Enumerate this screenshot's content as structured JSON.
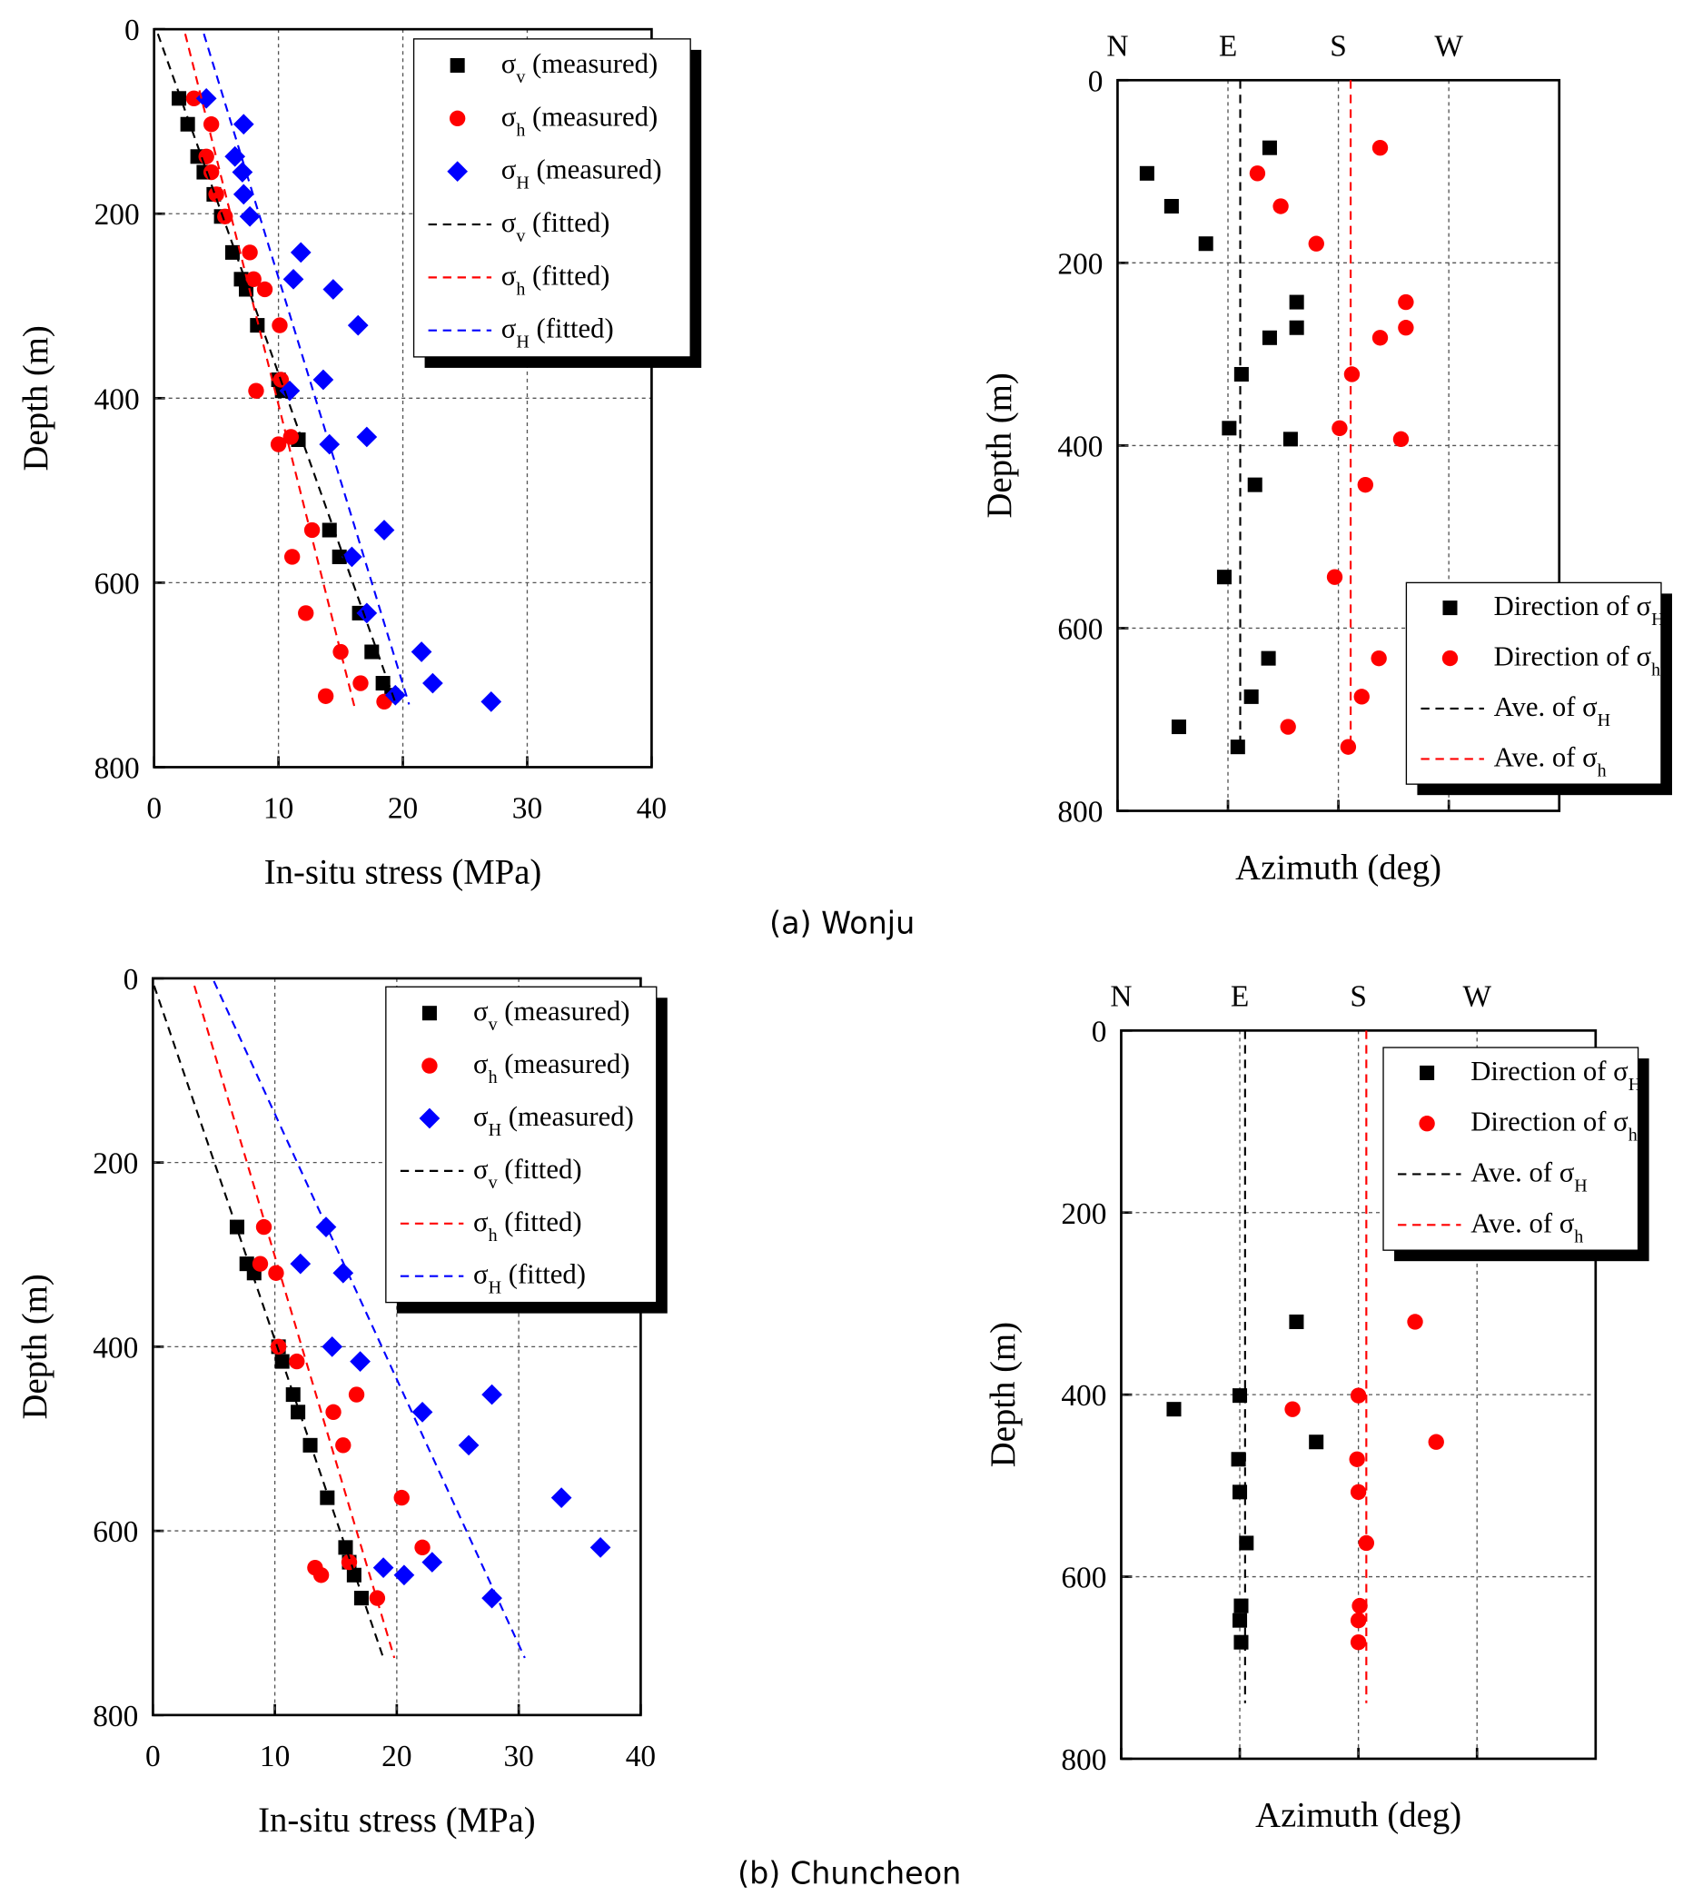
{
  "captions": [
    "(a) Wonju",
    "(b) Chuncheon"
  ],
  "chart_data": [
    {
      "type": "scatter",
      "xlabel": "In-situ stress (MPa)",
      "ylabel": "Depth (m)",
      "xlim": [
        0,
        40
      ],
      "ylim": [
        0,
        800
      ],
      "xticks": [
        0,
        10,
        20,
        30,
        40
      ],
      "yticks": [
        0,
        200,
        400,
        600,
        800
      ],
      "y_inverted": true,
      "grid": true,
      "legend": "upper right",
      "series": [
        {
          "name": "σv (measured)",
          "color": "#000000",
          "marker": "square",
          "x": [
            2.0,
            2.7,
            3.5,
            4.0,
            4.8,
            5.4,
            6.3,
            7.0,
            7.4,
            8.3,
            10.0,
            10.3,
            11.6,
            14.1,
            14.9,
            16.5,
            17.5,
            18.4,
            19.1
          ],
          "y": [
            75,
            103,
            138,
            155,
            179,
            203,
            242,
            271,
            282,
            321,
            380,
            392,
            445,
            543,
            572,
            633,
            675,
            709,
            722
          ]
        },
        {
          "name": "σh (measured)",
          "color": "#ff0000",
          "marker": "circle",
          "x": [
            3.2,
            4.6,
            4.2,
            4.6,
            5.0,
            5.7,
            7.7,
            8.0,
            8.9,
            10.1,
            10.2,
            8.2,
            11.0,
            10.0,
            12.7,
            11.1,
            12.2,
            15.0,
            16.6,
            13.8,
            18.5
          ],
          "y": [
            75,
            103,
            138,
            155,
            179,
            203,
            242,
            271,
            282,
            321,
            380,
            392,
            442,
            450,
            543,
            572,
            633,
            675,
            709,
            723,
            729
          ]
        },
        {
          "name": "σH (measured)",
          "color": "#0000ff",
          "marker": "diamond",
          "x": [
            4.2,
            7.2,
            6.5,
            7.1,
            7.2,
            7.7,
            11.8,
            11.2,
            14.4,
            16.4,
            13.6,
            10.9,
            17.1,
            14.1,
            18.5,
            15.9,
            17.1,
            21.5,
            22.4,
            19.4,
            27.1
          ],
          "y": [
            75,
            103,
            138,
            155,
            179,
            203,
            242,
            271,
            282,
            321,
            380,
            392,
            442,
            450,
            543,
            572,
            633,
            675,
            709,
            722,
            729
          ]
        },
        {
          "name": "σv (fitted)",
          "color": "#000000",
          "line": "dashed",
          "x": [
            0.3,
            19.4
          ],
          "y": [
            5,
            730
          ]
        },
        {
          "name": "σh (fitted)",
          "color": "#ff0000",
          "line": "dashed",
          "x": [
            2.5,
            16.1
          ],
          "y": [
            5,
            734
          ]
        },
        {
          "name": "σH (fitted)",
          "color": "#0000ff",
          "line": "dashed",
          "x": [
            4.0,
            20.5
          ],
          "y": [
            5,
            732
          ]
        }
      ]
    },
    {
      "type": "scatter",
      "xlabel": "Azimuth (deg)",
      "ylabel": "Depth (m)",
      "xlim": [
        0,
        360
      ],
      "ylim": [
        0,
        800
      ],
      "xticks": [
        {
          "value": 0,
          "label": "N"
        },
        {
          "value": 90,
          "label": "E"
        },
        {
          "value": 180,
          "label": "S"
        },
        {
          "value": 270,
          "label": "W"
        }
      ],
      "xtick_position": "top",
      "yticks": [
        0,
        200,
        400,
        600,
        800
      ],
      "y_inverted": true,
      "grid": true,
      "legend": "lower right",
      "series": [
        {
          "name": "Direction of σH",
          "color": "#000000",
          "marker": "square",
          "x": [
            124,
            24,
            44,
            72,
            146,
            146,
            124,
            101,
            91,
            141,
            112,
            87,
            123,
            109,
            50,
            98
          ],
          "y": [
            74,
            102,
            138,
            179,
            243,
            271,
            282,
            322,
            381,
            393,
            443,
            544,
            633,
            675,
            708,
            730
          ]
        },
        {
          "name": "Direction of σh",
          "color": "#ff0000",
          "marker": "circle",
          "x": [
            214,
            114,
            133,
            162,
            235,
            235,
            214,
            191,
            181,
            231,
            202,
            177,
            213,
            199,
            139,
            188
          ],
          "y": [
            74,
            102,
            138,
            179,
            243,
            271,
            282,
            322,
            381,
            393,
            443,
            544,
            633,
            675,
            708,
            730
          ]
        },
        {
          "name": "Ave. of σH",
          "color": "#000000",
          "line": "dashed",
          "x": [
            100,
            100
          ],
          "y": [
            0,
            726
          ]
        },
        {
          "name": "Ave. of σh",
          "color": "#ff0000",
          "line": "dashed",
          "x": [
            190,
            190
          ],
          "y": [
            0,
            726
          ]
        }
      ]
    },
    {
      "type": "scatter",
      "xlabel": "In-situ stress (MPa)",
      "ylabel": "Depth (m)",
      "xlim": [
        0,
        40
      ],
      "ylim": [
        0,
        800
      ],
      "xticks": [
        0,
        10,
        20,
        30,
        40
      ],
      "yticks": [
        0,
        200,
        400,
        600,
        800
      ],
      "y_inverted": true,
      "grid": true,
      "legend": "upper right",
      "series": [
        {
          "name": "σv (measured)",
          "color": "#000000",
          "marker": "square",
          "x": [
            6.9,
            7.7,
            8.3,
            10.3,
            10.6,
            11.5,
            11.9,
            12.9,
            14.3,
            15.8,
            16.1,
            16.5,
            17.1
          ],
          "y": [
            270,
            310,
            320,
            400,
            416,
            452,
            471,
            507,
            564,
            618,
            634,
            648,
            673
          ]
        },
        {
          "name": "σh (measured)",
          "color": "#ff0000",
          "marker": "circle",
          "x": [
            9.1,
            8.8,
            10.1,
            10.3,
            11.8,
            16.7,
            14.8,
            15.6,
            20.4,
            22.1,
            16.1,
            13.3,
            13.8,
            18.4
          ],
          "y": [
            270,
            310,
            320,
            400,
            416,
            452,
            471,
            507,
            564,
            618,
            634,
            640,
            648,
            673
          ]
        },
        {
          "name": "σH (measured)",
          "color": "#0000ff",
          "marker": "diamond",
          "x": [
            14.2,
            12.1,
            15.6,
            14.7,
            17.0,
            27.8,
            22.1,
            25.9,
            33.5,
            36.7,
            22.9,
            18.9,
            20.6,
            27.8
          ],
          "y": [
            270,
            310,
            320,
            400,
            416,
            452,
            471,
            507,
            564,
            618,
            634,
            640,
            648,
            673
          ]
        },
        {
          "name": "σv (fitted)",
          "color": "#000000",
          "line": "dashed",
          "x": [
            0.1,
            18.9
          ],
          "y": [
            8,
            738
          ]
        },
        {
          "name": "σh (fitted)",
          "color": "#ff0000",
          "line": "dashed",
          "x": [
            3.4,
            19.8
          ],
          "y": [
            8,
            738
          ]
        },
        {
          "name": "σH (fitted)",
          "color": "#0000ff",
          "line": "dashed",
          "x": [
            5.0,
            30.5
          ],
          "y": [
            3,
            738
          ]
        }
      ]
    },
    {
      "type": "scatter",
      "xlabel": "Azimuth (deg)",
      "ylabel": "Depth (m)",
      "xlim": [
        0,
        360
      ],
      "ylim": [
        0,
        800
      ],
      "xticks": [
        {
          "value": 0,
          "label": "N"
        },
        {
          "value": 90,
          "label": "E"
        },
        {
          "value": 180,
          "label": "S"
        },
        {
          "value": 270,
          "label": "W"
        }
      ],
      "xtick_position": "top",
      "yticks": [
        0,
        200,
        400,
        600,
        800
      ],
      "y_inverted": true,
      "grid": true,
      "legend": "upper right",
      "series": [
        {
          "name": "Direction of σH",
          "color": "#000000",
          "marker": "square",
          "x": [
            133,
            90,
            40,
            148,
            89,
            90,
            95,
            91,
            90,
            91
          ],
          "y": [
            320,
            401,
            416,
            452,
            471,
            507,
            563,
            632,
            648,
            672
          ]
        },
        {
          "name": "Direction of σh",
          "color": "#ff0000",
          "marker": "circle",
          "x": [
            223,
            180,
            130,
            239,
            179,
            180,
            186,
            181,
            180,
            180
          ],
          "y": [
            320,
            401,
            416,
            452,
            471,
            507,
            563,
            632,
            648,
            672
          ]
        },
        {
          "name": "Ave. of σH",
          "color": "#000000",
          "line": "dashed",
          "x": [
            94,
            94
          ],
          "y": [
            0,
            739
          ]
        },
        {
          "name": "Ave. of σh",
          "color": "#ff0000",
          "line": "dashed",
          "x": [
            186,
            186
          ],
          "y": [
            0,
            739
          ]
        }
      ]
    }
  ]
}
